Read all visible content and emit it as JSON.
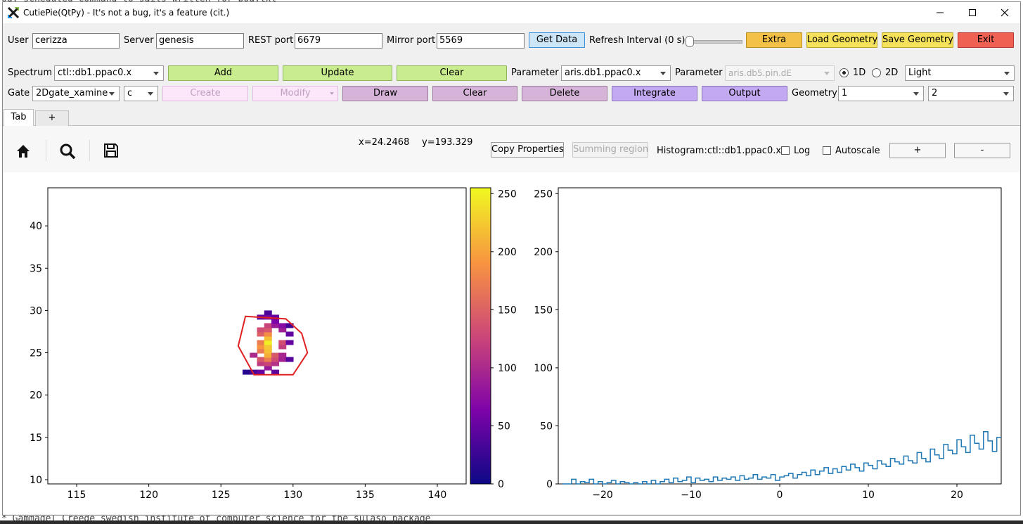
{
  "window": {
    "title": "CutiePie(QtPy) - It's not a bug, it's a feature (cit.)"
  },
  "connection": {
    "user_label": "User",
    "user_value": "cerizza",
    "server_label": "Server",
    "server_value": "genesis",
    "rest_label": "REST port",
    "rest_value": "6679",
    "mirror_label": "Mirror port",
    "mirror_value": "5569",
    "get_data": "Get Data",
    "refresh_label": "Refresh Interval (0 s)",
    "refresh_interval_s": 0,
    "extra": "Extra",
    "load_geometry": "Load Geometry",
    "save_geometry": "Save Geometry",
    "exit": "Exit"
  },
  "spectrum_row": {
    "spectrum_label": "Spectrum",
    "spectrum_value": "ctl::db1.ppac0.x",
    "add": "Add",
    "update": "Update",
    "clear": "Clear",
    "parameter_label": "Parameter",
    "parameter1_value": "aris.db1.ppac0.x",
    "parameter2_label": "Parameter",
    "parameter2_value": "aris.db5.pin.dE",
    "radio_1d": "1D",
    "radio_2d": "2D",
    "selected_dim": "1D",
    "theme_value": "Light"
  },
  "gate_row": {
    "gate_label": "Gate",
    "gate_value": "2Dgate_xamine",
    "gate_type": "c",
    "create": "Create",
    "modify": "Modify",
    "draw": "Draw",
    "clear": "Clear",
    "delete": "Delete",
    "integrate": "Integrate",
    "output": "Output",
    "geometry_label": "Geometry",
    "geometry_rows": "1",
    "geometry_cols": "2"
  },
  "tabs": [
    {
      "label": "Tab"
    },
    {
      "label": "+"
    }
  ],
  "plot_toolbar": {
    "x_readout": "x=24.2468",
    "y_readout": "y=193.329",
    "copy_properties": "Copy Properties",
    "summing_region": "Summing region",
    "histogram_label": "Histogram:ctl::db1.ppac0.x",
    "log_label": "Log",
    "autoscale_label": "Autoscale",
    "plus": "+",
    "minus": "-",
    "icons": [
      "home-icon",
      "search-icon",
      "save-icon"
    ]
  },
  "chart_data": [
    {
      "type": "heatmap",
      "xlim": [
        113,
        142
      ],
      "ylim": [
        9.5,
        44.5
      ],
      "xticks": [
        115,
        120,
        125,
        130,
        135,
        140
      ],
      "yticks": [
        10,
        15,
        20,
        25,
        30,
        35,
        40
      ],
      "colorbar": {
        "range": [
          0,
          255
        ],
        "ticks": [
          0,
          50,
          100,
          150,
          200,
          250
        ],
        "colormap": "plasma"
      },
      "cluster": {
        "center": [
          128,
          25.7
        ],
        "peak": 255
      },
      "gate_polygon": [
        [
          126.7,
          29.3
        ],
        [
          129.5,
          29.0
        ],
        [
          130.6,
          27.3
        ],
        [
          131.0,
          25.0
        ],
        [
          130.0,
          22.4
        ],
        [
          127.3,
          22.4
        ],
        [
          126.2,
          25.8
        ]
      ],
      "gate_color": "#e02020"
    },
    {
      "type": "line",
      "drawstyle": "steps",
      "xlim": [
        -25,
        25
      ],
      "ylim": [
        0,
        255
      ],
      "xticks": [
        -20,
        -10,
        0,
        10,
        20
      ],
      "yticks": [
        0,
        50,
        100,
        150,
        200,
        250
      ],
      "color": "#1f77b4",
      "x_start": -24.5,
      "bin_width": 0.5,
      "values": [
        0,
        0,
        4,
        0,
        2,
        1,
        4,
        0,
        2,
        0,
        1,
        3,
        0,
        2,
        1,
        0,
        1,
        0,
        2,
        0,
        3,
        0,
        2,
        4,
        1,
        5,
        2,
        3,
        6,
        1,
        5,
        3,
        4,
        2,
        6,
        3,
        5,
        4,
        6,
        3,
        7,
        4,
        5,
        8,
        4,
        6,
        5,
        8,
        3,
        6,
        7,
        9,
        5,
        8,
        10,
        7,
        12,
        8,
        11,
        14,
        9,
        13,
        10,
        15,
        12,
        17,
        14,
        11,
        18,
        16,
        13,
        20,
        17,
        15,
        22,
        19,
        17,
        24,
        20,
        18,
        27,
        22,
        19,
        30,
        25,
        22,
        34,
        29,
        26,
        38,
        32,
        27,
        42,
        35,
        30,
        45,
        37,
        28,
        40,
        44,
        38,
        36,
        41,
        35,
        42,
        39,
        31,
        34,
        30,
        24,
        27,
        20,
        22,
        15,
        14,
        10,
        11,
        7,
        8,
        5,
        6,
        4,
        5,
        3,
        4,
        2,
        3,
        1,
        3,
        2,
        1,
        2,
        0,
        1,
        2,
        0,
        1,
        0,
        2,
        1,
        0,
        1,
        0,
        1,
        0,
        0,
        1,
        0,
        0,
        1,
        0,
        0,
        1,
        0,
        0,
        1,
        0,
        0,
        1,
        0,
        0,
        0,
        1,
        0,
        0,
        0,
        1,
        0,
        0,
        0,
        1,
        0,
        0,
        0,
        0,
        1,
        0,
        0,
        0,
        0,
        0,
        0,
        0,
        0,
        1,
        0,
        0,
        0,
        0,
        0,
        0,
        0,
        1,
        0,
        0,
        0,
        0,
        0,
        0,
        0
      ]
    }
  ]
}
